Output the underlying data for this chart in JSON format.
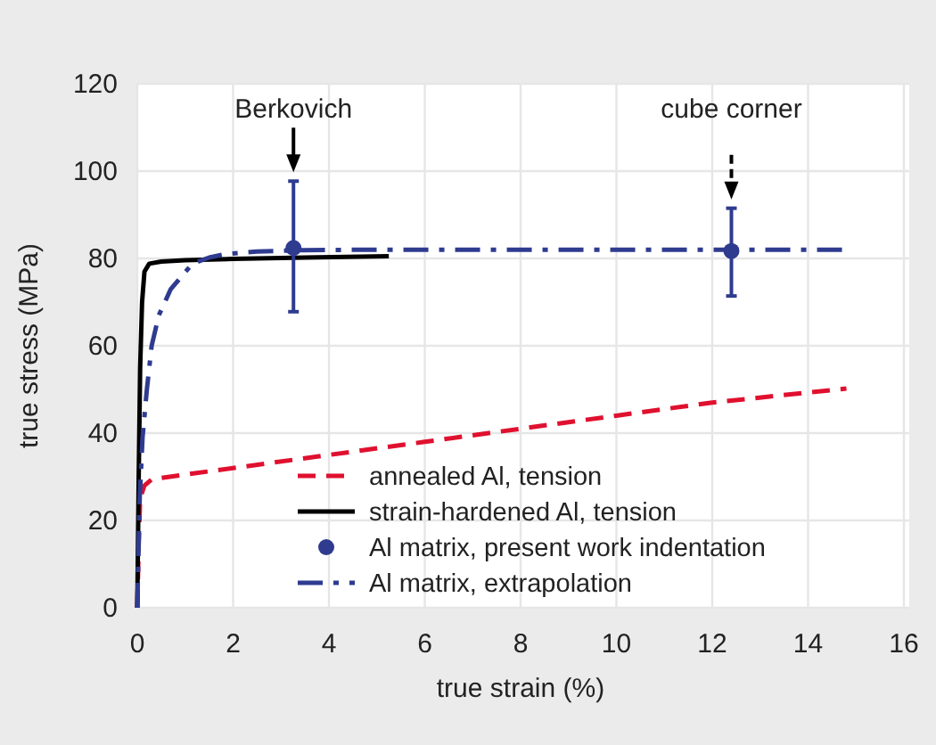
{
  "chart_data": {
    "type": "line",
    "xlabel": "true strain (%)",
    "ylabel": "true stress (MPa)",
    "xlim": [
      0,
      16
    ],
    "xticks": [
      0,
      2,
      4,
      6,
      8,
      10,
      12,
      14,
      16
    ],
    "ylim": [
      0,
      120
    ],
    "yticks": [
      0,
      20,
      40,
      60,
      80,
      100,
      120
    ],
    "grid": true,
    "legend": "bottom right",
    "series": [
      {
        "name": "annealed Al, tension",
        "color": "#e0102f",
        "line_style": "dashed",
        "x": [
          0,
          0.03,
          0.06,
          0.15,
          0.3,
          1,
          2,
          4,
          6,
          8,
          10,
          12,
          14.8
        ],
        "values": [
          0,
          15,
          25,
          28,
          29.4,
          30.5,
          32,
          35,
          38,
          41,
          44,
          47,
          50.2
        ]
      },
      {
        "name": "strain-hardened Al, tension",
        "color": "#000000",
        "line_style": "solid",
        "x": [
          0,
          0.03,
          0.06,
          0.1,
          0.15,
          0.25,
          0.5,
          1,
          2,
          3.5,
          5.25
        ],
        "values": [
          0,
          30,
          55,
          70,
          77,
          78.8,
          79.3,
          79.6,
          79.9,
          80.2,
          80.5
        ]
      },
      {
        "name": "Al matrix, present work indentation",
        "type": "scatter",
        "color": "#2e3b8f",
        "marker": "circle",
        "x": [
          3.26,
          12.4
        ],
        "values": [
          82.4,
          81.7
        ],
        "errors": [
          [
            67.8,
            97.7
          ],
          [
            71.4,
            91.5
          ]
        ]
      },
      {
        "name": "Al matrix, extrapolation",
        "color": "#2e3b8f",
        "line_style": "dashdot",
        "x": [
          0,
          0.05,
          0.11,
          0.2,
          0.3,
          0.45,
          0.7,
          1.15,
          1.5,
          1.84,
          2.5,
          3.5,
          5,
          14.8
        ],
        "values": [
          0,
          25,
          39,
          50,
          60,
          67,
          73,
          78.8,
          80.2,
          81,
          81.6,
          81.9,
          82,
          82
        ]
      }
    ],
    "annotations": [
      "Berkovich",
      "cube corner"
    ]
  }
}
